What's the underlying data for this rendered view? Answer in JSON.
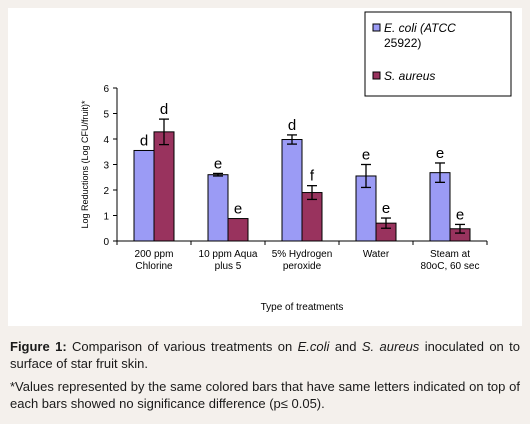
{
  "chart_data": {
    "type": "bar",
    "categories": [
      [
        "200 ppm",
        "Chlorine"
      ],
      [
        "10 ppm Aqua",
        "plus 5"
      ],
      [
        "5% Hydrogen",
        "peroxide"
      ],
      [
        "Water"
      ],
      [
        "Steam at",
        "80oC, 60 sec"
      ]
    ],
    "series": [
      {
        "name": "E. coli (ATCC 25922)",
        "legend_lines": [
          "E. coli (ATCC",
          "25922)"
        ],
        "color": "#9b9bf5",
        "values": [
          3.55,
          2.6,
          3.98,
          2.55,
          2.68
        ],
        "errors": [
          0,
          0.05,
          0.18,
          0.45,
          0.38
        ],
        "letters": [
          "d",
          "e",
          "d",
          "e",
          "e"
        ]
      },
      {
        "name": "S. aureus",
        "legend_lines": [
          "S. aureus"
        ],
        "color": "#99335e",
        "values": [
          4.28,
          0.88,
          1.9,
          0.7,
          0.48
        ],
        "errors": [
          0.5,
          0,
          0.27,
          0.2,
          0.17
        ],
        "letters": [
          "d",
          "e",
          "f",
          "e",
          "e"
        ]
      }
    ],
    "xlabel": "Type of treatments",
    "ylabel": "Log Reductions (Log CFU/fruit)*",
    "ylim": [
      0,
      6
    ],
    "yticks": [
      "0",
      "1",
      "2",
      "3",
      "4",
      "5",
      "6"
    ],
    "legend_position": "top-right",
    "grid": false
  },
  "caption": {
    "figure_label": "Figure 1:",
    "text_1": " Comparison of various treatments on ",
    "ecoli": "E.coli",
    "text_2": " and ",
    "saureus": "S. aureus",
    "text_3": " inoculated on to surface of star fruit skin.",
    "note": "*Values represented by the same colored bars that have same letters indicated on top of each bars showed no significance difference (p≤ 0.05)."
  }
}
